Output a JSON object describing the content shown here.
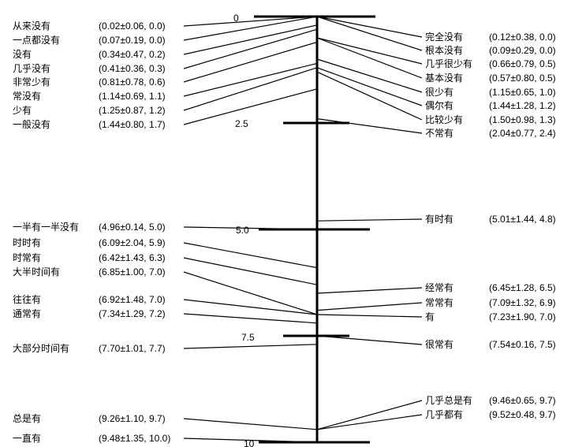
{
  "scale": {
    "ticks": [
      {
        "value": 0,
        "label": "0"
      },
      {
        "value": 2.5,
        "label": "2.5"
      },
      {
        "value": 5,
        "label": "5.0"
      },
      {
        "value": 7.5,
        "label": "7.5"
      },
      {
        "value": 10,
        "label": "10"
      }
    ]
  },
  "left_terms": [
    {
      "term": "从来没有",
      "stats": "(0.02±0.06, 0.0)",
      "value": 0.0
    },
    {
      "term": "一点都没有",
      "stats": "(0.07±0.19, 0.0)",
      "value": 0.0
    },
    {
      "term": "没有",
      "stats": "(0.34±0.47, 0.2)",
      "value": 0.2
    },
    {
      "term": "几乎没有",
      "stats": "(0.41±0.36, 0.3)",
      "value": 0.3
    },
    {
      "term": "非常少有",
      "stats": "(0.81±0.78, 0.6)",
      "value": 0.6
    },
    {
      "term": "常没有",
      "stats": "(1.14±0.69, 1.1)",
      "value": 1.1
    },
    {
      "term": "少有",
      "stats": "(1.25±0.87, 1.2)",
      "value": 1.2
    },
    {
      "term": "一般没有",
      "stats": "(1.44±0.80, 1.7)",
      "value": 1.7
    },
    {
      "term": "一半有一半没有",
      "stats": "(4.96±0.14, 5.0)",
      "value": 5.0
    },
    {
      "term": "时时有",
      "stats": "(6.09±2.04, 5.9)",
      "value": 5.9
    },
    {
      "term": "时常有",
      "stats": "(6.42±1.43, 6.3)",
      "value": 6.3
    },
    {
      "term": "大半时间有",
      "stats": "(6.85±1.00, 7.0)",
      "value": 7.0
    },
    {
      "term": "往往有",
      "stats": "(6.92±1.48, 7.0)",
      "value": 7.0
    },
    {
      "term": "通常有",
      "stats": "(7.34±1.29, 7.2)",
      "value": 7.2
    },
    {
      "term": "大部分时间有",
      "stats": "(7.70±1.01, 7.7)",
      "value": 7.7
    },
    {
      "term": "总是有",
      "stats": "(9.26±1.10, 9.7)",
      "value": 9.7
    },
    {
      "term": "一直有",
      "stats": "(9.48±1.35, 10.0)",
      "value": 10.0
    }
  ],
  "right_terms": [
    {
      "term": "完全没有",
      "stats": "(0.12±0.38, 0.0)",
      "value": 0.0
    },
    {
      "term": "根本没有",
      "stats": "(0.09±0.29, 0.0)",
      "value": 0.0
    },
    {
      "term": "几乎很少有",
      "stats": "(0.66±0.79, 0.5)",
      "value": 0.5
    },
    {
      "term": "基本没有",
      "stats": "(0.57±0.80, 0.5)",
      "value": 0.5
    },
    {
      "term": "很少有",
      "stats": "(1.15±0.65, 1.0)",
      "value": 1.0
    },
    {
      "term": "偶尔有",
      "stats": "(1.44±1.28, 1.2)",
      "value": 1.2
    },
    {
      "term": "比较少有",
      "stats": "(1.50±0.98, 1.3)",
      "value": 1.3
    },
    {
      "term": "不常有",
      "stats": "(2.04±0.77, 2.4)",
      "value": 2.4
    },
    {
      "term": "有时有",
      "stats": "(5.01±1.44, 4.8)",
      "value": 4.8
    },
    {
      "term": "经常有",
      "stats": "(6.45±1.28, 6.5)",
      "value": 6.5
    },
    {
      "term": "常常有",
      "stats": "(7.09±1.32, 6.9)",
      "value": 6.9
    },
    {
      "term": "有",
      "stats": "(7.23±1.90, 7.0)",
      "value": 7.0
    },
    {
      "term": "很常有",
      "stats": "(7.54±0.16, 7.5)",
      "value": 7.5
    },
    {
      "term": "几乎总是有",
      "stats": "(9.46±0.65, 9.7)",
      "value": 9.7
    },
    {
      "term": "几乎都有",
      "stats": "(9.52±0.48, 9.7)",
      "value": 9.7
    }
  ]
}
